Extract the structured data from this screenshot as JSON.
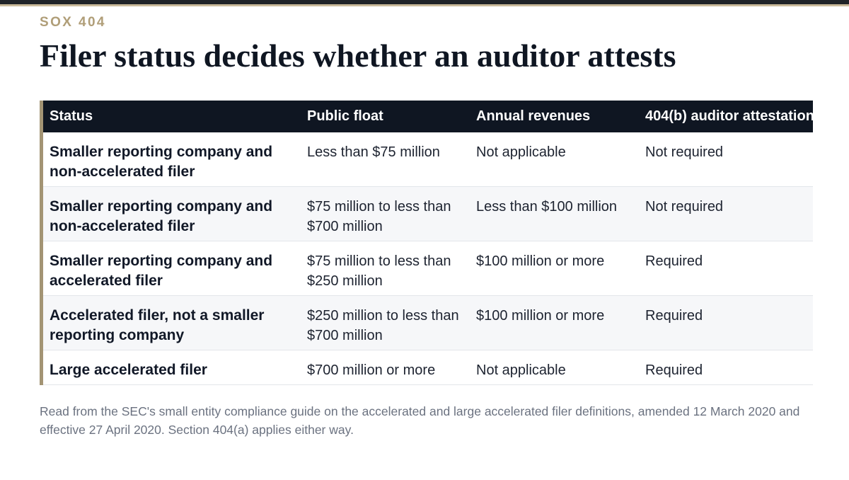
{
  "eyebrow": "SOX 404",
  "title": "Filer status decides whether an auditor attests",
  "table": {
    "headers": [
      "Status",
      "Public float",
      "Annual revenues",
      "404(b) auditor attestation"
    ],
    "rows": [
      [
        "Smaller reporting company and non-accelerated filer",
        "Less than $75 million",
        "Not applicable",
        "Not required"
      ],
      [
        "Smaller reporting company and non-accelerated filer",
        "$75 million to less than $700 million",
        "Less than $100 million",
        "Not required"
      ],
      [
        "Smaller reporting company and accelerated filer",
        "$75 million to less than $250 million",
        "$100 million or more",
        "Required"
      ],
      [
        "Accelerated filer, not a smaller reporting company",
        "$250 million to less than $700 million",
        "$100 million or more",
        "Required"
      ],
      [
        "Large accelerated filer",
        "$700 million or more",
        "Not applicable",
        "Required"
      ]
    ]
  },
  "footnote": "Read from the SEC's small entity compliance guide on the accelerated and large accelerated filer definitions, amended 12 March 2020 and effective 27 April 2020. Section 404(a) applies either way.",
  "colors": {
    "header_bg": "#0f1622",
    "accent": "#b09e78",
    "row_alt": "#f6f7f9"
  }
}
